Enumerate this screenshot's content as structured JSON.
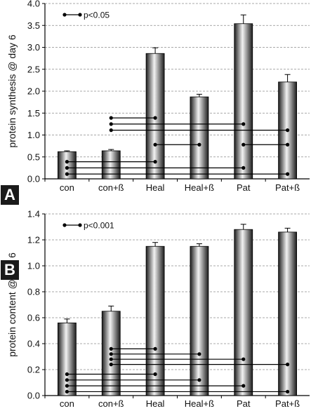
{
  "figure": {
    "colors": {
      "bar_dark": "#1c1c1c",
      "bar_light": "#f2f2f2",
      "grid": "#8c8c8c",
      "text": "#111111"
    }
  },
  "chart_data": [
    {
      "panel_label": "A",
      "type": "bar",
      "categories": [
        "con",
        "con+ß",
        "Heal",
        "Heal+ß",
        "Pat",
        "Pat+ß"
      ],
      "values": [
        0.62,
        0.64,
        2.86,
        1.87,
        3.54,
        2.21
      ],
      "errors": [
        0.02,
        0.03,
        0.13,
        0.06,
        0.2,
        0.17
      ],
      "ylabel": "protein synthesis @ day 6",
      "xlabel": "",
      "ylim": [
        0,
        4
      ],
      "yticks": [
        "0.0",
        "0.5",
        "1.0",
        "1.5",
        "2.0",
        "2.5",
        "3.0",
        "3.5",
        "4.0"
      ],
      "grid": "dashed horizontal",
      "legend": {
        "label": "p<0.05",
        "placement": "top-left"
      },
      "significance": [
        {
          "from": "con+ß",
          "to": "Heal",
          "y": 1.39
        },
        {
          "from": "con+ß",
          "to": "Pat",
          "y": 1.25
        },
        {
          "from": "con+ß",
          "to": "Pat+ß",
          "y": 1.11
        },
        {
          "from": "Heal+ß",
          "to": "Heal",
          "y": 0.78
        },
        {
          "from": "Pat",
          "to": "Pat+ß",
          "y": 0.78
        },
        {
          "from": "con",
          "to": "Heal",
          "y": 0.39
        },
        {
          "from": "con",
          "to": "Pat",
          "y": 0.25
        },
        {
          "from": "con",
          "to": "Pat+ß",
          "y": 0.11
        }
      ]
    },
    {
      "panel_label": "B",
      "type": "bar",
      "categories": [
        "con",
        "con+ß",
        "Heal",
        "Heal+ß",
        "Pat",
        "Pat+ß"
      ],
      "values": [
        0.56,
        0.65,
        1.15,
        1.15,
        1.28,
        1.26
      ],
      "errors": [
        0.03,
        0.04,
        0.03,
        0.02,
        0.04,
        0.03
      ],
      "ylabel": "protein content @ day 6",
      "xlabel": "",
      "ylim": [
        0,
        1.4
      ],
      "yticks": [
        "0.0",
        "0.2",
        "0.4",
        "0.6",
        "0.8",
        "1.0",
        "1.2",
        "1.4"
      ],
      "grid": "dashed horizontal",
      "legend": {
        "label": "p<0.001",
        "placement": "top-left"
      },
      "significance": [
        {
          "from": "con+ß",
          "to": "Heal",
          "y": 0.36
        },
        {
          "from": "con+ß",
          "to": "Heal+ß",
          "y": 0.32
        },
        {
          "from": "con+ß",
          "to": "Pat",
          "y": 0.28
        },
        {
          "from": "con+ß",
          "to": "Pat+ß",
          "y": 0.24
        },
        {
          "from": "con",
          "to": "Heal",
          "y": 0.165
        },
        {
          "from": "con",
          "to": "Heal+ß",
          "y": 0.12
        },
        {
          "from": "con",
          "to": "Pat",
          "y": 0.075
        },
        {
          "from": "con",
          "to": "Pat+ß",
          "y": 0.03
        }
      ]
    }
  ]
}
